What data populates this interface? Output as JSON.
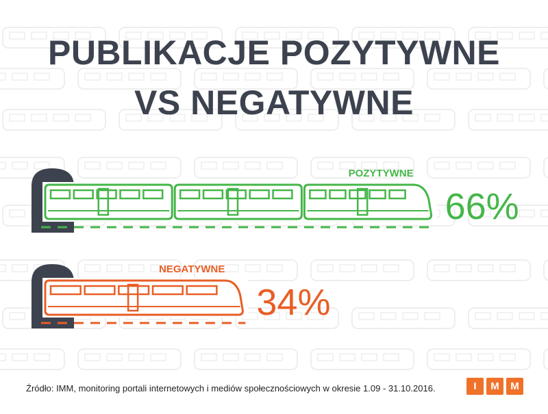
{
  "title_line1": "PUBLIKACJE POZYTYWNE",
  "title_line2": "VS NEGATYWNE",
  "source_text": "Źródło: IMM, monitoring portali internetowych i mediów społecznościowych w okresie 1.09 - 31.10.2016.",
  "logo_letters": [
    "I",
    "M",
    "M"
  ],
  "colors": {
    "title": "#3d424f",
    "positive": "#45b649",
    "negative": "#e85e25",
    "tunnel": "#3d424f",
    "logo": "#f0722a",
    "background_pattern": "#eeeeee"
  },
  "chart_data": {
    "type": "bar",
    "orientation": "horizontal",
    "categories": [
      "POZYTYWNE",
      "NEGATYWNE"
    ],
    "values": [
      66,
      34
    ],
    "value_labels": [
      "66%",
      "34%"
    ],
    "unit": "%",
    "title": "PUBLIKACJE POZYTYWNE VS NEGATYWNE",
    "xlim": [
      0,
      100
    ],
    "grid": false,
    "legend": "none",
    "mark_style": "train"
  }
}
